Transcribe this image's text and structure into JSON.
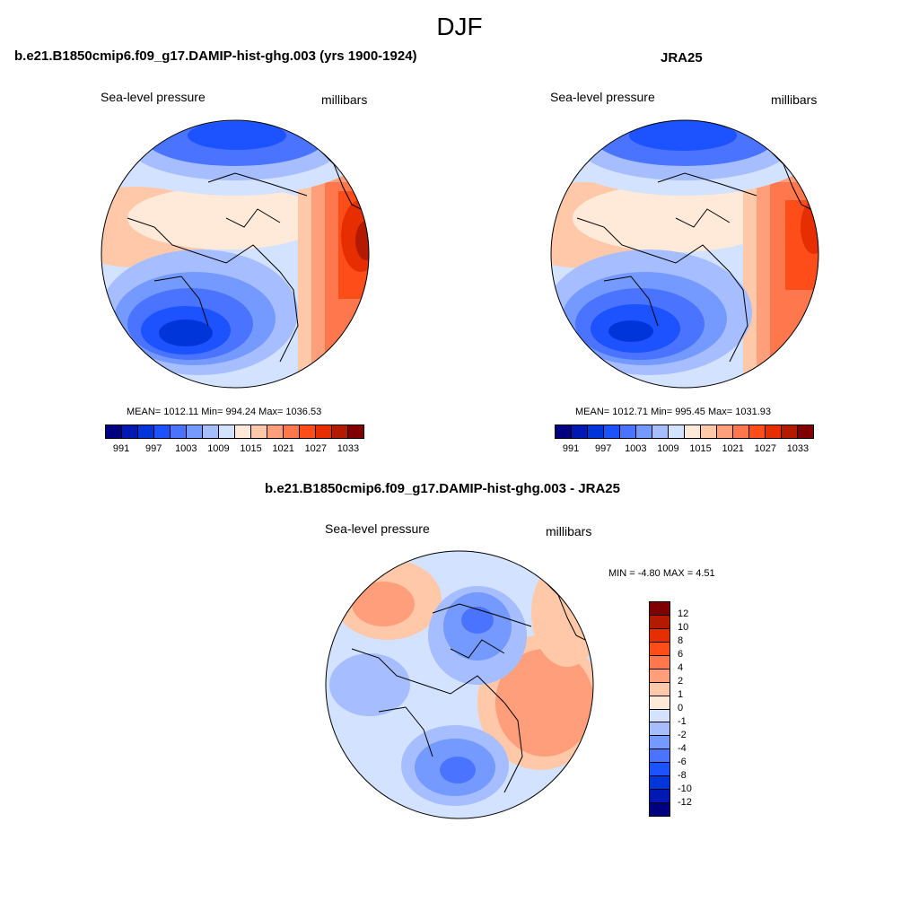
{
  "main_title": "DJF",
  "colors": {
    "blues": [
      "#000080",
      "#0019b3",
      "#0036d9",
      "#1c52ff",
      "#4a74ff",
      "#7499ff",
      "#a6bdff",
      "#d3e2ff"
    ],
    "reds": [
      "#ffe9d8",
      "#ffc8a8",
      "#ff9e7a",
      "#ff774d",
      "#ff4d1a",
      "#e62e00",
      "#b31a00",
      "#800000"
    ],
    "diff_colors": [
      "#000080",
      "#0019b3",
      "#0036d9",
      "#1c52ff",
      "#4a74ff",
      "#7499ff",
      "#a6bdff",
      "#d3e2ff",
      "#ffe9d8",
      "#ffc8a8",
      "#ff9e7a",
      "#ff774d",
      "#ff4d1a",
      "#e62e00",
      "#b31a00",
      "#800000"
    ],
    "coast": "#000000"
  },
  "panels": [
    {
      "title": "b.e21.B1850cmip6.f09_g17.DAMIP-hist-ghg.003 (yrs 1900-1924)",
      "left_label": "Sea-level pressure",
      "right_label": "millibars",
      "stats": "MEAN= 1012.11  Min= 994.24  Max= 1036.53",
      "colorbar_ticks": [
        "991",
        "997",
        "1003",
        "1009",
        "1015",
        "1021",
        "1027",
        "1033"
      ]
    },
    {
      "title": "JRA25",
      "left_label": "Sea-level pressure",
      "right_label": "millibars",
      "stats": "MEAN= 1012.71  Min= 995.45  Max= 1031.93",
      "colorbar_ticks": [
        "991",
        "997",
        "1003",
        "1009",
        "1015",
        "1021",
        "1027",
        "1033"
      ]
    },
    {
      "title": "b.e21.B1850cmip6.f09_g17.DAMIP-hist-ghg.003 - JRA25",
      "left_label": "Sea-level pressure",
      "right_label": "millibars",
      "stats": "MIN =  -4.80 MAX =   4.51",
      "colorbar_ticks": [
        "12",
        "10",
        "8",
        "6",
        "4",
        "2",
        "1",
        "0",
        "-1",
        "-2",
        "-4",
        "-6",
        "-8",
        "-10",
        "-12"
      ]
    }
  ]
}
